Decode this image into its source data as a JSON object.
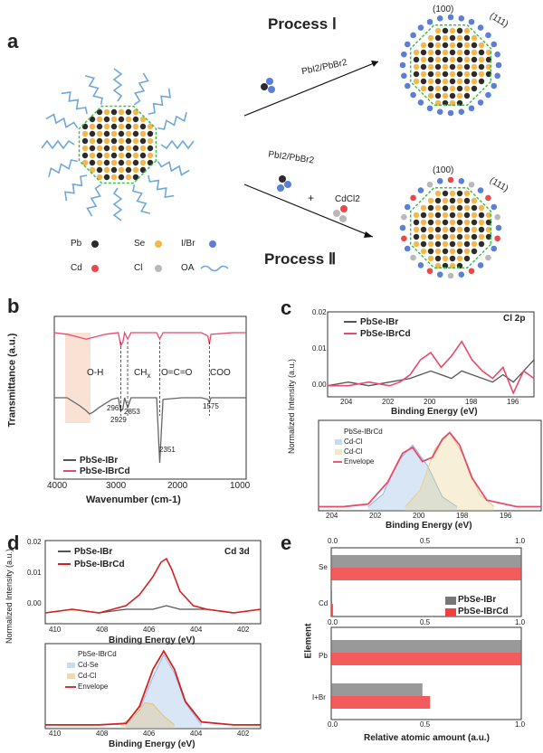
{
  "panels": {
    "a": "a",
    "b": "b",
    "c": "c",
    "d": "d",
    "e": "e"
  },
  "panel_a": {
    "process1": "Process Ⅰ",
    "process2": "Process Ⅱ",
    "reagent1": "PbI2/PbBr2",
    "reagent2a": "PbI2/PbBr2",
    "reagent2b": "CdCl2",
    "plus": "+",
    "facet100_top": "(100)",
    "facet111_top": "(111)",
    "facet100_bot": "(100)",
    "facet111_bot": "(111)",
    "legend": {
      "pb": "Pb",
      "se": "Se",
      "ibr": "I/Br",
      "cd": "Cd",
      "cl": "Cl",
      "oa": "OA"
    },
    "colors": {
      "pb": "#2b2b2b",
      "se": "#f2b84b",
      "ibr": "#5b7fd6",
      "cd": "#e84a4a",
      "cl": "#b9b9b9",
      "oa": "#6ea7d8",
      "facet": "#3bbf4a"
    }
  },
  "panel_b": {
    "ylabel": "Transmittance (a.u.)",
    "xlabel": "Wavenumber (cm-1)",
    "ticks": [
      "4000",
      "3000",
      "2000",
      "1000"
    ],
    "annotations": {
      "oh": "O-H",
      "ch": "CH",
      "ch_sub": "x",
      "oco": "O=C=O",
      "coo": "COO"
    },
    "peaks": [
      "2961",
      "2929",
      "2853",
      "2351",
      "1575"
    ],
    "legend": [
      "PbSe-IBr",
      "PbSe-IBrCd"
    ]
  },
  "panel_c": {
    "ylabel": "Normalized Intensity (a.u.)",
    "title": "Cl 2p",
    "xlabel": "Binding Energy (eV)",
    "xticks": [
      "204",
      "202",
      "200",
      "198",
      "196"
    ],
    "yticks": [
      "0.02",
      "0.01",
      "0.00"
    ],
    "legend": [
      "PbSe-IBr",
      "PbSe-IBrCd"
    ],
    "fit_legend": [
      "PbSe-IBrCd",
      "Cd-Cl",
      "Cd-Cl",
      "Envelope"
    ]
  },
  "panel_d": {
    "ylabel": "Normalized Intensity (a.u.)",
    "title": "Cd 3d",
    "xlabel": "Binding Energy (eV)",
    "xticks": [
      "410",
      "408",
      "406",
      "404",
      "402"
    ],
    "yticks": [
      "0.02",
      "0.01",
      "0.00"
    ],
    "legend": [
      "PbSe-IBr",
      "PbSe-IBrCd"
    ],
    "fit_legend": [
      "PbSe-IBrCd",
      "Cd-Se",
      "Cd-Cl",
      "Envelope"
    ]
  },
  "panel_e": {
    "ylabel": "Element",
    "xlabel": "Relative atomic amount (a.u.)",
    "xticks": [
      "0.0",
      "0.5",
      "1.0"
    ],
    "legend": [
      "PbSe-IBr",
      "PbSe-IBrCd"
    ]
  },
  "chart_data": [
    {
      "id": "b",
      "type": "line",
      "title": "",
      "xlabel": "Wavenumber (cm-1)",
      "ylabel": "Transmittance (a.u.)",
      "xlim": [
        4000,
        1000
      ],
      "series": [
        {
          "name": "PbSe-IBrCd",
          "color": "#e84b6a",
          "x": [
            4000,
            3800,
            3600,
            3500,
            3400,
            3200,
            3000,
            2961,
            2929,
            2900,
            2853,
            2800,
            2400,
            2351,
            2300,
            2000,
            1700,
            1600,
            1575,
            1550,
            1200,
            1000
          ],
          "values": [
            0.9,
            0.89,
            0.87,
            0.86,
            0.87,
            0.89,
            0.9,
            0.82,
            0.84,
            0.9,
            0.86,
            0.9,
            0.9,
            0.86,
            0.9,
            0.9,
            0.9,
            0.88,
            0.83,
            0.89,
            0.9,
            0.9
          ]
        },
        {
          "name": "PbSe-IBr",
          "color": "#666666",
          "x": [
            4000,
            3800,
            3600,
            3500,
            3450,
            3400,
            3300,
            3100,
            3000,
            2961,
            2929,
            2900,
            2853,
            2800,
            2400,
            2351,
            2300,
            2000,
            1700,
            1600,
            1575,
            1550,
            1200,
            1000
          ],
          "values": [
            0.5,
            0.5,
            0.45,
            0.42,
            0.4,
            0.41,
            0.44,
            0.49,
            0.5,
            0.42,
            0.43,
            0.5,
            0.44,
            0.5,
            0.5,
            0.1,
            0.49,
            0.5,
            0.5,
            0.49,
            0.47,
            0.5,
            0.5,
            0.5
          ]
        }
      ]
    },
    {
      "id": "c_top",
      "type": "line",
      "title": "Cl 2p",
      "xlabel": "Binding Energy (eV)",
      "ylabel": "Normalized Intensity (a.u.)",
      "xlim": [
        205,
        195
      ],
      "ylim": [
        -0.003,
        0.02
      ],
      "series": [
        {
          "name": "PbSe-IBr",
          "color": "#555555",
          "x": [
            205,
            204,
            203,
            202,
            201,
            200.5,
            200,
            199.5,
            199,
            198.5,
            198,
            197,
            196.5,
            196,
            195.5,
            195
          ],
          "values": [
            0,
            0.001,
            0,
            0.001,
            0.002,
            0.003,
            0.004,
            0.003,
            0.002,
            0.004,
            0.003,
            0.001,
            0.003,
            0.001,
            0.004,
            0.007
          ]
        },
        {
          "name": "PbSe-IBrCd",
          "color": "#e84b6a",
          "x": [
            205,
            204,
            203,
            202,
            201.5,
            201,
            200.5,
            200,
            199.5,
            199,
            198.5,
            198,
            197.5,
            197,
            196.5,
            196,
            195.5,
            195
          ],
          "values": [
            0,
            0,
            0.001,
            0,
            0.001,
            0.003,
            0.007,
            0.009,
            0.005,
            0.008,
            0.012,
            0.007,
            0.004,
            0.002,
            0.005,
            -0.002,
            0.004,
            0.002
          ]
        }
      ]
    },
    {
      "id": "c_fit",
      "type": "line",
      "title": "",
      "xlabel": "Binding Energy (eV)",
      "ylabel": "",
      "xlim": [
        204,
        195
      ],
      "series": [
        {
          "name": "Cd-Cl",
          "color": "#8fb8e3",
          "x": [
            202.0,
            201.4,
            200.8,
            200.2,
            199.6,
            199.0,
            198.4
          ],
          "values": [
            0,
            0.15,
            0.55,
            0.75,
            0.5,
            0.12,
            0
          ]
        },
        {
          "name": "Cd-Cl",
          "color": "#e8d08b",
          "x": [
            200.5,
            199.9,
            199.3,
            198.7,
            198.1,
            197.5,
            196.9
          ],
          "values": [
            0,
            0.2,
            0.7,
            0.9,
            0.6,
            0.15,
            0
          ]
        },
        {
          "name": "Envelope",
          "color": "#e84b6a",
          "x": [
            204,
            203,
            202,
            201.2,
            200.6,
            200.2,
            199.8,
            199.4,
            199.0,
            198.7,
            198.3,
            197.8,
            197.2,
            196,
            195
          ],
          "values": [
            0,
            0,
            0.03,
            0.3,
            0.65,
            0.72,
            0.55,
            0.6,
            0.82,
            0.9,
            0.75,
            0.35,
            0.08,
            0,
            0
          ]
        }
      ]
    },
    {
      "id": "d_top",
      "type": "line",
      "title": "Cd 3d",
      "xlabel": "Binding Energy (eV)",
      "ylabel": "Normalized Intensity (a.u.)",
      "xlim": [
        410,
        402
      ],
      "ylim": [
        -0.003,
        0.02
      ],
      "series": [
        {
          "name": "PbSe-IBr",
          "color": "#555555",
          "x": [
            410,
            409,
            408,
            407,
            406,
            405.5,
            405,
            404,
            403,
            402
          ],
          "values": [
            0,
            0.001,
            0,
            0.001,
            0.001,
            0.002,
            0.001,
            0.001,
            0,
            0.001
          ]
        },
        {
          "name": "PbSe-IBrCd",
          "color": "#d42020",
          "x": [
            410,
            409,
            408,
            407,
            406.5,
            406,
            405.7,
            405.5,
            405.3,
            405,
            404.5,
            404,
            403,
            402
          ],
          "values": [
            0,
            0.001,
            0,
            0.002,
            0.005,
            0.01,
            0.014,
            0.015,
            0.012,
            0.006,
            0.002,
            0.001,
            0,
            0.001
          ]
        }
      ]
    },
    {
      "id": "d_fit",
      "type": "line",
      "title": "",
      "xlabel": "Binding Energy (eV)",
      "ylabel": "",
      "xlim": [
        410,
        402
      ],
      "series": [
        {
          "name": "Cd-Se",
          "color": "#8fb8e3",
          "x": [
            407,
            406.5,
            406,
            405.6,
            405.2,
            404.8,
            404.2
          ],
          "values": [
            0,
            0.2,
            0.65,
            0.95,
            0.7,
            0.3,
            0
          ]
        },
        {
          "name": "Cd-Cl",
          "color": "#e8c07a",
          "x": [
            407.2,
            406.7,
            406.3,
            406.0,
            405.6,
            405.2
          ],
          "values": [
            0,
            0.12,
            0.3,
            0.28,
            0.12,
            0
          ]
        },
        {
          "name": "Envelope",
          "color": "#d42020",
          "x": [
            410,
            408,
            407,
            406.5,
            406,
            405.6,
            405.2,
            404.8,
            404.2,
            403,
            402
          ],
          "values": [
            0,
            0,
            0.02,
            0.25,
            0.75,
            1.0,
            0.75,
            0.32,
            0.04,
            0,
            0
          ]
        }
      ]
    },
    {
      "id": "e",
      "type": "bar",
      "title": "",
      "xlabel": "Relative atomic amount (a.u.)",
      "ylabel": "Element",
      "xlim": [
        0,
        1
      ],
      "categories": [
        "Se",
        "Cd",
        "Pb",
        "I+Br"
      ],
      "series": [
        {
          "name": "PbSe-IBr",
          "color": "#666666",
          "values": [
            1.0,
            0.0,
            1.0,
            0.48
          ]
        },
        {
          "name": "PbSe-IBrCd",
          "color": "#f04040",
          "values": [
            1.0,
            0.01,
            1.0,
            0.52
          ]
        }
      ]
    }
  ]
}
